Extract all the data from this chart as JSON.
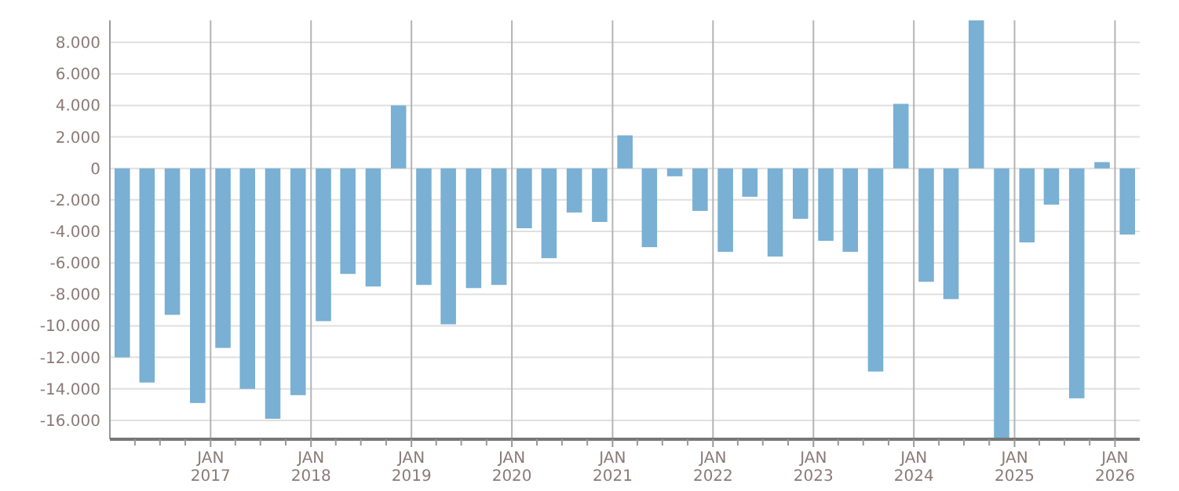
{
  "chart_data": {
    "type": "bar",
    "color": "#79b0d3",
    "x": [
      "2016-02-15",
      "2016-05-15",
      "2016-08-15",
      "2016-11-15",
      "2017-02-15",
      "2017-05-15",
      "2017-08-15",
      "2017-11-15",
      "2018-02-15",
      "2018-05-15",
      "2018-08-15",
      "2018-11-15",
      "2019-02-15",
      "2019-05-15",
      "2019-08-15",
      "2019-11-15",
      "2020-02-15",
      "2020-05-15",
      "2020-08-15",
      "2020-11-15",
      "2021-02-15",
      "2021-05-15",
      "2021-08-15",
      "2021-11-15",
      "2022-02-15",
      "2022-05-15",
      "2022-08-15",
      "2022-11-15",
      "2023-02-15",
      "2023-05-15",
      "2023-08-15",
      "2023-11-15",
      "2024-02-15",
      "2024-05-15",
      "2024-08-15",
      "2024-11-15",
      "2025-02-15",
      "2025-05-15",
      "2025-08-15",
      "2025-11-15",
      "2026-02-15"
    ],
    "values": [
      -12000,
      -13600,
      -9300,
      -14900,
      -11400,
      -14000,
      -15900,
      -14400,
      -9700,
      -6700,
      -7500,
      4000,
      -7400,
      -9900,
      -7600,
      -7400,
      -3800,
      -5700,
      -2800,
      -3400,
      2100,
      -5000,
      -500,
      -2700,
      -5300,
      -1800,
      -5600,
      -3200,
      -4600,
      -5300,
      -12900,
      4100,
      -7200,
      -8300,
      9400,
      -17200,
      -4700,
      -2300,
      -14600,
      400,
      -4200
    ],
    "xlim": [
      "2016-01-01",
      "2026-04-01"
    ],
    "xticks": [
      {
        "value": "2016-04-01",
        "label": null
      },
      {
        "value": "2016-07-01",
        "label": null
      },
      {
        "value": "2016-10-01",
        "label": null
      },
      {
        "value": "2017-01-01",
        "label": "JAN\n2017"
      },
      {
        "value": "2017-04-01",
        "label": null
      },
      {
        "value": "2017-07-01",
        "label": null
      },
      {
        "value": "2017-10-01",
        "label": null
      },
      {
        "value": "2018-01-01",
        "label": "JAN\n2018"
      },
      {
        "value": "2018-04-01",
        "label": null
      },
      {
        "value": "2018-07-01",
        "label": null
      },
      {
        "value": "2018-10-01",
        "label": null
      },
      {
        "value": "2019-01-01",
        "label": "JAN\n2019"
      },
      {
        "value": "2019-04-01",
        "label": null
      },
      {
        "value": "2019-07-01",
        "label": null
      },
      {
        "value": "2019-10-01",
        "label": null
      },
      {
        "value": "2020-01-01",
        "label": "JAN\n2020"
      },
      {
        "value": "2020-04-01",
        "label": null
      },
      {
        "value": "2020-07-01",
        "label": null
      },
      {
        "value": "2020-10-01",
        "label": null
      },
      {
        "value": "2021-01-01",
        "label": "JAN\n2021"
      },
      {
        "value": "2021-04-01",
        "label": null
      },
      {
        "value": "2021-07-01",
        "label": null
      },
      {
        "value": "2021-10-01",
        "label": null
      },
      {
        "value": "2022-01-01",
        "label": "JAN\n2022"
      },
      {
        "value": "2022-04-01",
        "label": null
      },
      {
        "value": "2022-07-01",
        "label": null
      },
      {
        "value": "2022-10-01",
        "label": null
      },
      {
        "value": "2023-01-01",
        "label": "JAN\n2023"
      },
      {
        "value": "2023-04-01",
        "label": null
      },
      {
        "value": "2023-07-01",
        "label": null
      },
      {
        "value": "2023-10-01",
        "label": null
      },
      {
        "value": "2024-01-01",
        "label": "JAN\n2024"
      },
      {
        "value": "2024-04-01",
        "label": null
      },
      {
        "value": "2024-07-01",
        "label": null
      },
      {
        "value": "2024-10-01",
        "label": null
      },
      {
        "value": "2025-01-01",
        "label": "JAN\n2025"
      },
      {
        "value": "2025-04-01",
        "label": null
      },
      {
        "value": "2025-07-01",
        "label": null
      },
      {
        "value": "2025-10-01",
        "label": null
      },
      {
        "value": "2026-01-01",
        "label": "JAN\n2026"
      }
    ],
    "ylim": [
      -17200,
      9400
    ],
    "yticks": [
      {
        "value": -16000,
        "label": "-16.000"
      },
      {
        "value": -14000,
        "label": "-14.000"
      },
      {
        "value": -12000,
        "label": "-12.000"
      },
      {
        "value": -10000,
        "label": "-10.000"
      },
      {
        "value": -8000,
        "label": "-8.000"
      },
      {
        "value": -6000,
        "label": "-6.000"
      },
      {
        "value": -4000,
        "label": "-4.000"
      },
      {
        "value": -2000,
        "label": "-2.000"
      },
      0,
      {
        "value": 2000,
        "label": "2.000"
      },
      {
        "value": 4000,
        "label": "4.000"
      },
      {
        "value": 6000,
        "label": "6.000"
      },
      {
        "value": 8000,
        "label": "8.000"
      }
    ],
    "grid": true
  }
}
